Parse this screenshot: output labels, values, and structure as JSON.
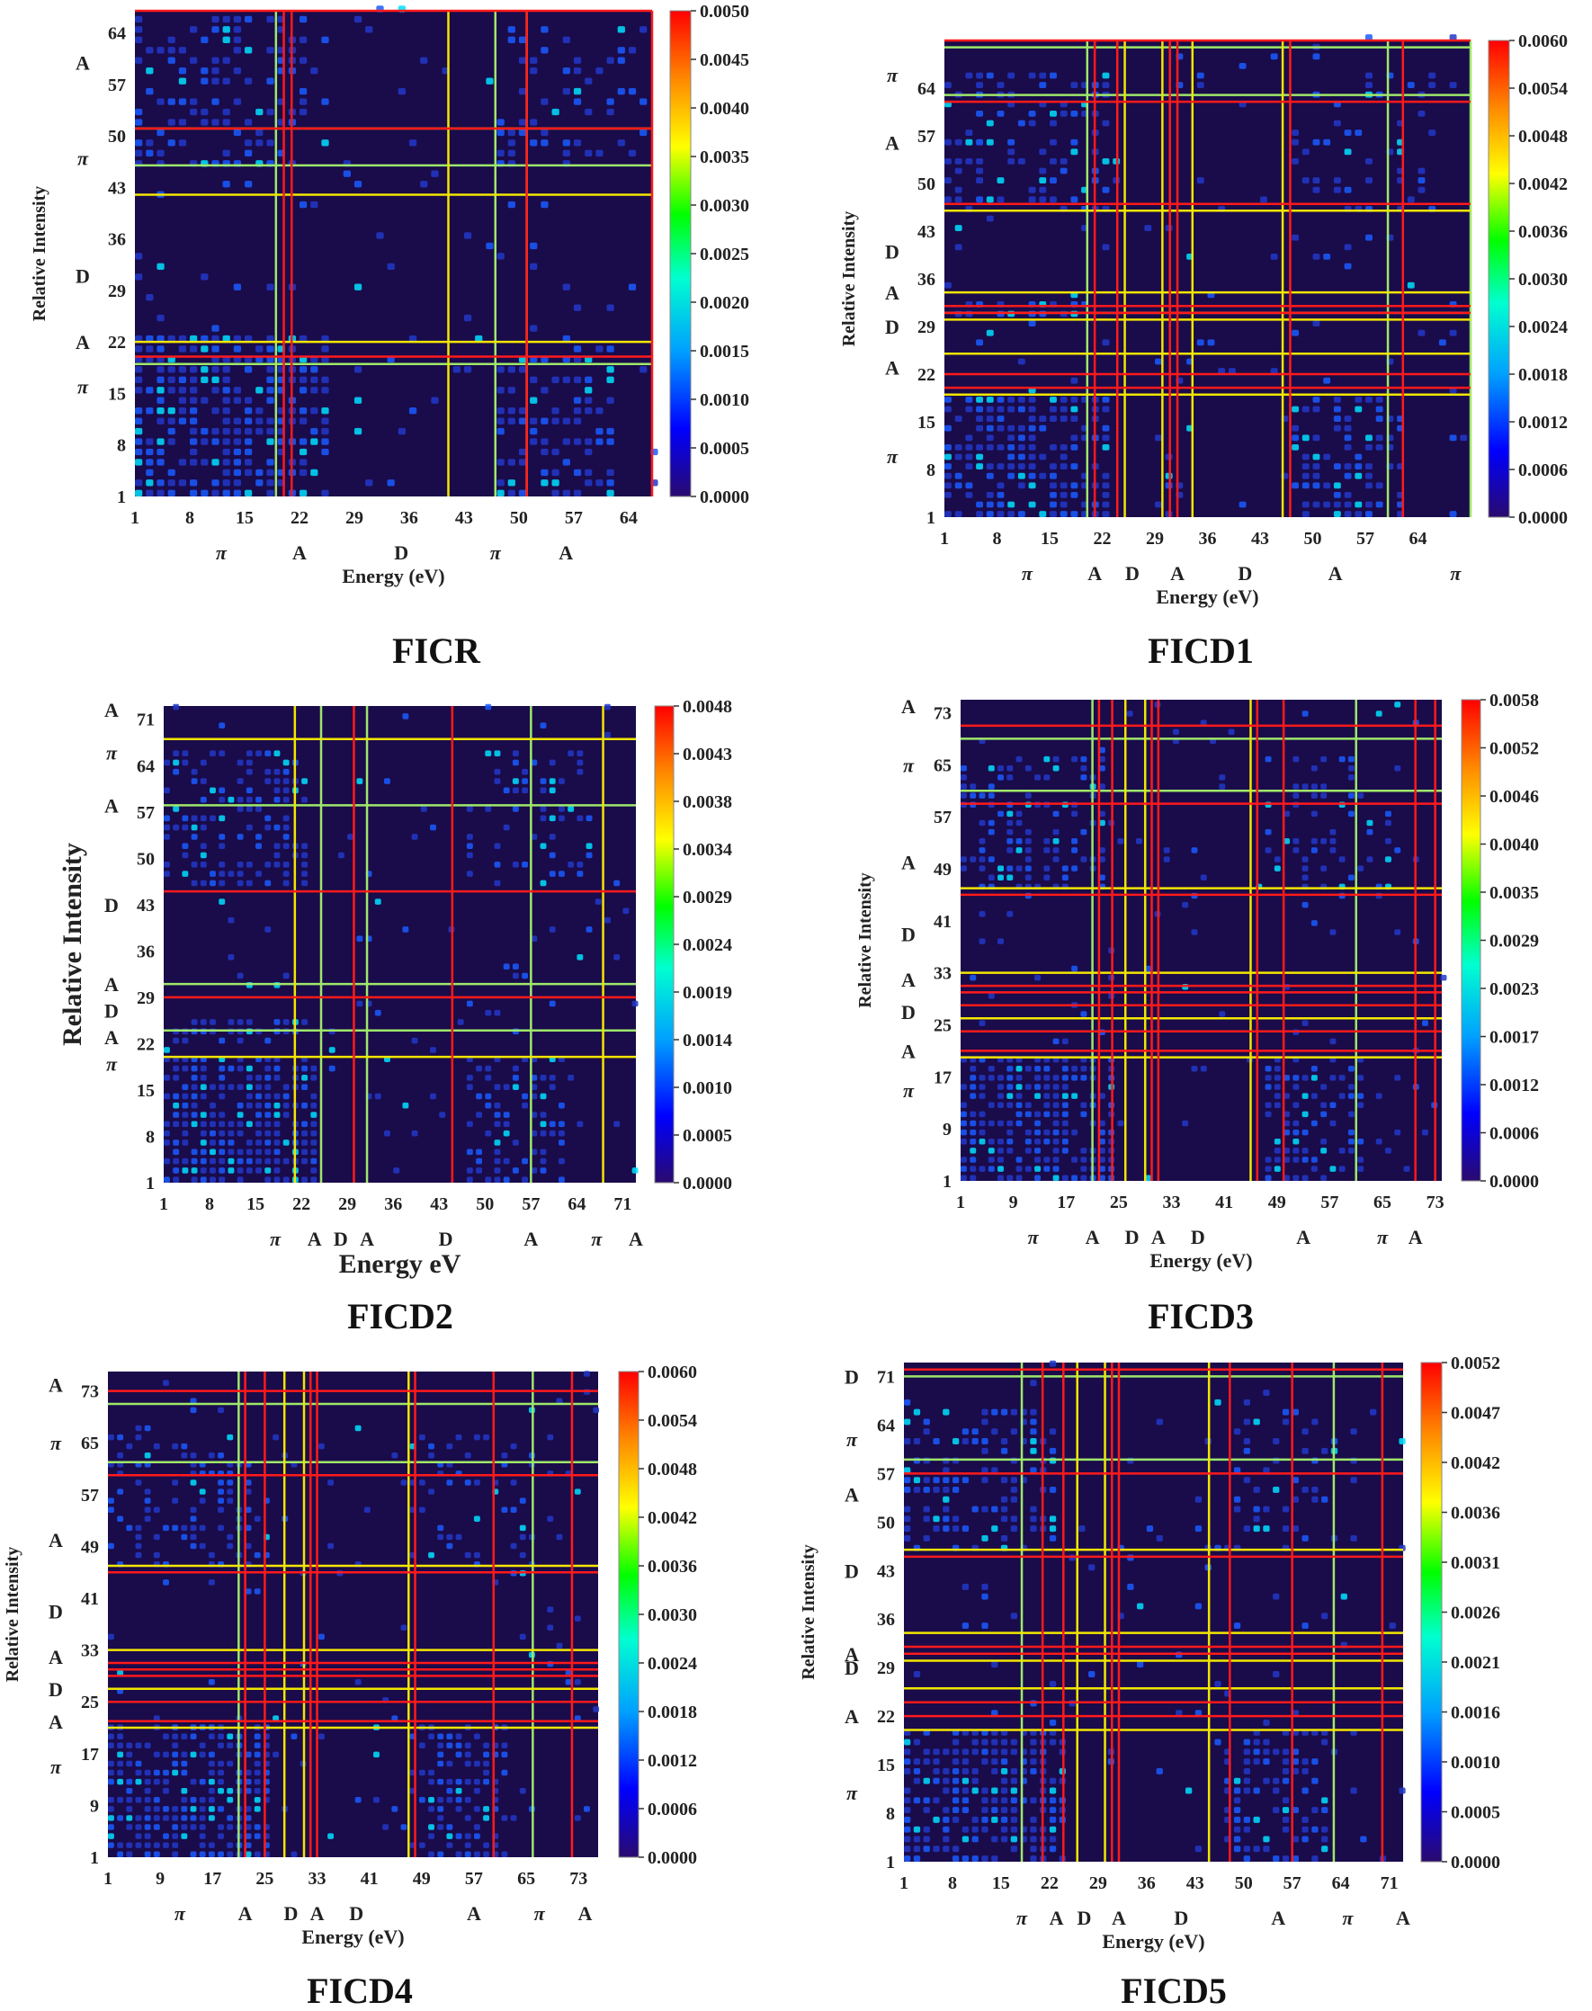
{
  "colors": {
    "bg": "#1a0b4a",
    "red_line": "#ff1a1a",
    "yellow_line": "#f2e600",
    "green_line": "#9ee86a"
  },
  "colorbar_gradient": [
    "#2a0a6e",
    "#0000ff",
    "#00a0ff",
    "#00ffd0",
    "#00ff00",
    "#ffff00",
    "#ff8800",
    "#ff0000"
  ],
  "chart_data": [
    {
      "type": "heatmap",
      "title": "FICR",
      "xlabel": "Energy (eV)",
      "ylabel": "Relative Intensity",
      "xlim": [
        1,
        67
      ],
      "ylim": [
        1,
        67
      ],
      "x_ticks": [
        1,
        8,
        15,
        22,
        29,
        36,
        43,
        50,
        57,
        64
      ],
      "y_ticks": [
        1,
        8,
        15,
        22,
        29,
        36,
        43,
        50,
        57,
        64
      ],
      "colorbar_ticks": [
        "0.0000",
        "0.0005",
        "0.0010",
        "0.0015",
        "0.0020",
        "0.0025",
        "0.0030",
        "0.0035",
        "0.0040",
        "0.0045",
        "0.0050"
      ],
      "x_regions": [
        {
          "label": "π",
          "at": 12
        },
        {
          "label": "A",
          "at": 22
        },
        {
          "label": "D",
          "at": 35
        },
        {
          "label": "π",
          "at": 47
        },
        {
          "label": "A",
          "at": 56
        }
      ],
      "y_regions": [
        {
          "label": "A",
          "at": 60
        },
        {
          "label": "π",
          "at": 47
        },
        {
          "label": "D",
          "at": 31
        },
        {
          "label": "A",
          "at": 22
        },
        {
          "label": "π",
          "at": 16
        }
      ],
      "lines_red": [
        20,
        21,
        51,
        67
      ],
      "lines_yellow": [
        41,
        51
      ],
      "lines_green": [
        19,
        47
      ],
      "hlines_red": [
        20,
        51,
        67
      ],
      "hlines_yellow": [
        22,
        42,
        51
      ],
      "hlines_green": [
        19,
        46
      ]
    },
    {
      "type": "heatmap",
      "title": "FICD1",
      "xlabel": "Energy (eV)",
      "ylabel": "Relative Intensity",
      "xlim": [
        1,
        71
      ],
      "ylim": [
        1,
        71
      ],
      "x_ticks": [
        1,
        8,
        15,
        22,
        29,
        36,
        43,
        50,
        57,
        64
      ],
      "y_ticks": [
        1,
        8,
        15,
        22,
        29,
        36,
        43,
        50,
        57,
        64
      ],
      "colorbar_ticks": [
        "0.0000",
        "0.0006",
        "0.0012",
        "0.0018",
        "0.0024",
        "0.0030",
        "0.0036",
        "0.0042",
        "0.0048",
        "0.0054",
        "0.0060"
      ],
      "x_regions": [
        {
          "label": "π",
          "at": 12
        },
        {
          "label": "A",
          "at": 21
        },
        {
          "label": "D",
          "at": 26
        },
        {
          "label": "A",
          "at": 32
        },
        {
          "label": "D",
          "at": 41
        },
        {
          "label": "A",
          "at": 53
        },
        {
          "label": "π",
          "at": 69
        }
      ],
      "y_regions": [
        {
          "label": "π",
          "at": 66
        },
        {
          "label": "A",
          "at": 56
        },
        {
          "label": "D",
          "at": 40
        },
        {
          "label": "A",
          "at": 34
        },
        {
          "label": "D",
          "at": 29
        },
        {
          "label": "A",
          "at": 23
        },
        {
          "label": "π",
          "at": 10
        }
      ],
      "lines_red": [
        21,
        24,
        31,
        32,
        47,
        62
      ],
      "lines_yellow": [
        25,
        30,
        34,
        46
      ],
      "lines_green": [
        20,
        60,
        71
      ],
      "hlines_red": [
        20,
        22,
        31,
        32,
        47,
        62,
        71
      ],
      "hlines_yellow": [
        19,
        25,
        30,
        34,
        46
      ],
      "hlines_green": [
        31,
        63,
        70
      ]
    },
    {
      "type": "heatmap",
      "title": "FICD2",
      "xlabel": "Energy eV",
      "ylabel": "Relative Intensity",
      "xlim": [
        1,
        73
      ],
      "ylim": [
        1,
        73
      ],
      "x_ticks": [
        1,
        8,
        15,
        22,
        29,
        36,
        43,
        50,
        57,
        64,
        71
      ],
      "y_ticks": [
        1,
        8,
        15,
        22,
        29,
        36,
        43,
        50,
        57,
        64,
        71
      ],
      "colorbar_ticks": [
        "0.0000",
        "0.0005",
        "0.0010",
        "0.0014",
        "0.0019",
        "0.0024",
        "0.0029",
        "0.0034",
        "0.0038",
        "0.0043",
        "0.0048"
      ],
      "x_regions": [
        {
          "label": "π",
          "at": 18
        },
        {
          "label": "A",
          "at": 24
        },
        {
          "label": "D",
          "at": 28
        },
        {
          "label": "A",
          "at": 32
        },
        {
          "label": "D",
          "at": 44
        },
        {
          "label": "A",
          "at": 57
        },
        {
          "label": "π",
          "at": 67
        },
        {
          "label": "A",
          "at": 73
        }
      ],
      "y_regions": [
        {
          "label": "A",
          "at": 75
        },
        {
          "label": "π",
          "at": 66
        },
        {
          "label": "A",
          "at": 58
        },
        {
          "label": "D",
          "at": 43
        },
        {
          "label": "A",
          "at": 31
        },
        {
          "label": "D",
          "at": 27
        },
        {
          "label": "A",
          "at": 23
        },
        {
          "label": "π",
          "at": 19
        }
      ],
      "lines_red": [
        30,
        45
      ],
      "lines_yellow": [
        21,
        68
      ],
      "lines_green": [
        25,
        32,
        57
      ],
      "hlines_red": [
        29,
        45
      ],
      "hlines_yellow": [
        20,
        68
      ],
      "hlines_green": [
        24,
        31,
        58
      ]
    },
    {
      "type": "heatmap",
      "title": "FICD3",
      "xlabel": "Energy (eV)",
      "ylabel": "Relative Intensity",
      "xlim": [
        1,
        74
      ],
      "ylim": [
        1,
        75
      ],
      "x_ticks": [
        1,
        9,
        17,
        25,
        33,
        41,
        49,
        57,
        65,
        73
      ],
      "y_ticks": [
        1,
        9,
        17,
        25,
        33,
        41,
        49,
        57,
        65,
        73
      ],
      "colorbar_ticks": [
        "0.0000",
        "0.0006",
        "0.0012",
        "0.0017",
        "0.0023",
        "0.0029",
        "0.0035",
        "0.0040",
        "0.0046",
        "0.0052",
        "0.0058"
      ],
      "x_regions": [
        {
          "label": "π",
          "at": 12
        },
        {
          "label": "A",
          "at": 21
        },
        {
          "label": "D",
          "at": 27
        },
        {
          "label": "A",
          "at": 31
        },
        {
          "label": "D",
          "at": 37
        },
        {
          "label": "A",
          "at": 53
        },
        {
          "label": "π",
          "at": 65
        },
        {
          "label": "A",
          "at": 70
        }
      ],
      "y_regions": [
        {
          "label": "A",
          "at": 74
        },
        {
          "label": "π",
          "at": 65
        },
        {
          "label": "A",
          "at": 50
        },
        {
          "label": "D",
          "at": 39
        },
        {
          "label": "A",
          "at": 32
        },
        {
          "label": "D",
          "at": 27
        },
        {
          "label": "A",
          "at": 21
        },
        {
          "label": "π",
          "at": 15
        }
      ],
      "lines_red": [
        22,
        24,
        30,
        31,
        46,
        50,
        70,
        73
      ],
      "lines_yellow": [
        26,
        29,
        45
      ],
      "lines_green": [
        21,
        61
      ],
      "hlines_red": [
        21,
        24,
        28,
        30,
        31,
        45,
        59,
        71
      ],
      "hlines_yellow": [
        20,
        26,
        33,
        46
      ],
      "hlines_green": [
        61,
        69
      ]
    },
    {
      "type": "heatmap",
      "title": "FICD4",
      "xlabel": "Energy (eV)",
      "ylabel": "Relative Intensity",
      "xlim": [
        1,
        76
      ],
      "ylim": [
        1,
        76
      ],
      "x_ticks": [
        1,
        9,
        17,
        25,
        33,
        41,
        49,
        57,
        65,
        73
      ],
      "y_ticks": [
        1,
        9,
        17,
        25,
        33,
        41,
        49,
        57,
        65,
        73
      ],
      "colorbar_ticks": [
        "0.0000",
        "0.0006",
        "0.0012",
        "0.0018",
        "0.0024",
        "0.0030",
        "0.0036",
        "0.0042",
        "0.0048",
        "0.0054",
        "0.0060"
      ],
      "x_regions": [
        {
          "label": "π",
          "at": 12
        },
        {
          "label": "A",
          "at": 22
        },
        {
          "label": "D",
          "at": 29
        },
        {
          "label": "A",
          "at": 33
        },
        {
          "label": "D",
          "at": 39
        },
        {
          "label": "A",
          "at": 57
        },
        {
          "label": "π",
          "at": 67
        },
        {
          "label": "A",
          "at": 74
        }
      ],
      "y_regions": [
        {
          "label": "A",
          "at": 74
        },
        {
          "label": "π",
          "at": 65
        },
        {
          "label": "A",
          "at": 50
        },
        {
          "label": "D",
          "at": 39
        },
        {
          "label": "A",
          "at": 32
        },
        {
          "label": "D",
          "at": 27
        },
        {
          "label": "A",
          "at": 22
        },
        {
          "label": "π",
          "at": 15
        }
      ],
      "lines_red": [
        22,
        25,
        32,
        33,
        48,
        60,
        72
      ],
      "lines_yellow": [
        28,
        31,
        47
      ],
      "lines_green": [
        21,
        66
      ],
      "hlines_red": [
        22,
        25,
        29,
        30,
        31,
        45,
        60,
        73
      ],
      "hlines_yellow": [
        21,
        27,
        33,
        46
      ],
      "hlines_green": [
        62,
        71
      ]
    },
    {
      "type": "heatmap",
      "title": "FICD5",
      "xlabel": "Energy (eV)",
      "ylabel": "Relative Intensity",
      "xlim": [
        1,
        73
      ],
      "ylim": [
        1,
        73
      ],
      "x_ticks": [
        1,
        8,
        15,
        22,
        29,
        36,
        43,
        50,
        57,
        64,
        71
      ],
      "y_ticks": [
        1,
        8,
        15,
        22,
        29,
        36,
        43,
        50,
        57,
        64,
        71
      ],
      "colorbar_ticks": [
        "0.0000",
        "0.0005",
        "0.0010",
        "0.0016",
        "0.0021",
        "0.0026",
        "0.0031",
        "0.0036",
        "0.0042",
        "0.0047",
        "0.0052"
      ],
      "x_regions": [
        {
          "label": "π",
          "at": 18
        },
        {
          "label": "A",
          "at": 23
        },
        {
          "label": "D",
          "at": 27
        },
        {
          "label": "A",
          "at": 32
        },
        {
          "label": "D",
          "at": 41
        },
        {
          "label": "A",
          "at": 55
        },
        {
          "label": "π",
          "at": 65
        },
        {
          "label": "A",
          "at": 73
        }
      ],
      "y_regions": [
        {
          "label": "D",
          "at": 71
        },
        {
          "label": "π",
          "at": 62
        },
        {
          "label": "A",
          "at": 54
        },
        {
          "label": "D",
          "at": 43
        },
        {
          "label": "A",
          "at": 31
        },
        {
          "label": "D",
          "at": 29
        },
        {
          "label": "A",
          "at": 22
        },
        {
          "label": "π",
          "at": 11
        }
      ],
      "lines_red": [
        21,
        24,
        31,
        32,
        48,
        57,
        70
      ],
      "lines_yellow": [
        26,
        30,
        45
      ],
      "lines_green": [
        18,
        63
      ],
      "hlines_red": [
        22,
        24,
        31,
        32,
        45,
        57,
        72
      ],
      "hlines_yellow": [
        20,
        26,
        30,
        34,
        46
      ],
      "hlines_green": [
        59,
        71
      ]
    }
  ]
}
